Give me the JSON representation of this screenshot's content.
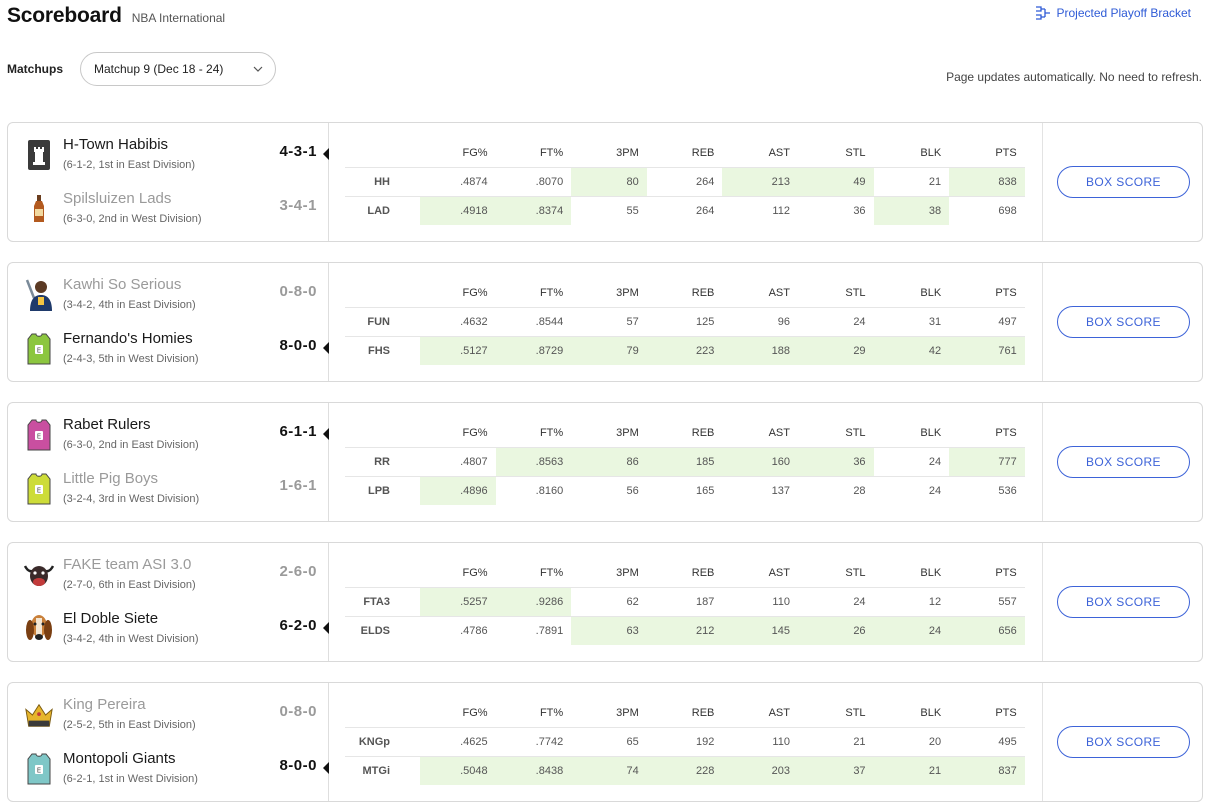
{
  "header": {
    "title": "Scoreboard",
    "league": "NBA International"
  },
  "bracket_link": "Projected Playoff Bracket",
  "matchups_label": "Matchups",
  "matchup_select": {
    "value": "Matchup 9 (Dec 18 - 24)"
  },
  "auto_note": "Page updates automatically. No need to refresh.",
  "columns": [
    "FG%",
    "FT%",
    "3PM",
    "REB",
    "AST",
    "STL",
    "BLK",
    "PTS"
  ],
  "box_score_label": "BOX SCORE",
  "matchups": [
    {
      "teams": [
        {
          "name": "H-Town Habibis",
          "sub": "(6-1-2, 1st in East Division)",
          "record": "4-3-1",
          "winner": true,
          "logo": "tower-icon"
        },
        {
          "name": "Spilsluizen Lads",
          "sub": "(6-3-0, 2nd in West Division)",
          "record": "3-4-1",
          "winner": false,
          "logo": "bottle-icon"
        }
      ],
      "rows": [
        {
          "abbr": "HH",
          "values": [
            ".4874",
            ".8070",
            "80",
            "264",
            "213",
            "49",
            "21",
            "838"
          ],
          "wins": [
            false,
            false,
            true,
            false,
            true,
            true,
            false,
            true
          ]
        },
        {
          "abbr": "LAD",
          "values": [
            ".4918",
            ".8374",
            "55",
            "264",
            "112",
            "36",
            "38",
            "698"
          ],
          "wins": [
            true,
            true,
            false,
            false,
            false,
            false,
            true,
            false
          ]
        }
      ]
    },
    {
      "teams": [
        {
          "name": "Kawhi So Serious",
          "sub": "(3-4-2, 4th in East Division)",
          "record": "0-8-0",
          "winner": false,
          "logo": "player-icon"
        },
        {
          "name": "Fernando's Homies",
          "sub": "(2-4-3, 5th in West Division)",
          "record": "8-0-0",
          "winner": true,
          "logo": "jersey-icon"
        }
      ],
      "rows": [
        {
          "abbr": "FUN",
          "values": [
            ".4632",
            ".8544",
            "57",
            "125",
            "96",
            "24",
            "31",
            "497"
          ],
          "wins": [
            false,
            false,
            false,
            false,
            false,
            false,
            false,
            false
          ]
        },
        {
          "abbr": "FHS",
          "values": [
            ".5127",
            ".8729",
            "79",
            "223",
            "188",
            "29",
            "42",
            "761"
          ],
          "wins": [
            true,
            true,
            true,
            true,
            true,
            true,
            true,
            true
          ]
        }
      ]
    },
    {
      "teams": [
        {
          "name": "Rabet Rulers",
          "sub": "(6-3-0, 2nd in East Division)",
          "record": "6-1-1",
          "winner": true,
          "logo": "jersey-icon"
        },
        {
          "name": "Little Pig Boys",
          "sub": "(3-2-4, 3rd in West Division)",
          "record": "1-6-1",
          "winner": false,
          "logo": "jersey-icon"
        }
      ],
      "rows": [
        {
          "abbr": "RR",
          "values": [
            ".4807",
            ".8563",
            "86",
            "185",
            "160",
            "36",
            "24",
            "777"
          ],
          "wins": [
            false,
            true,
            true,
            true,
            true,
            true,
            false,
            true
          ]
        },
        {
          "abbr": "LPB",
          "values": [
            ".4896",
            ".8160",
            "56",
            "165",
            "137",
            "28",
            "24",
            "536"
          ],
          "wins": [
            true,
            false,
            false,
            false,
            false,
            false,
            false,
            false
          ]
        }
      ]
    },
    {
      "teams": [
        {
          "name": "FAKE team ASI 3.0",
          "sub": "(2-7-0, 6th in East Division)",
          "record": "2-6-0",
          "winner": false,
          "logo": "bull-icon"
        },
        {
          "name": "El Doble Siete",
          "sub": "(3-4-2, 4th in West Division)",
          "record": "6-2-0",
          "winner": true,
          "logo": "dog-icon"
        }
      ],
      "rows": [
        {
          "abbr": "FTA3",
          "values": [
            ".5257",
            ".9286",
            "62",
            "187",
            "110",
            "24",
            "12",
            "557"
          ],
          "wins": [
            true,
            true,
            false,
            false,
            false,
            false,
            false,
            false
          ]
        },
        {
          "abbr": "ELDS",
          "values": [
            ".4786",
            ".7891",
            "63",
            "212",
            "145",
            "26",
            "24",
            "656"
          ],
          "wins": [
            false,
            false,
            true,
            true,
            true,
            true,
            true,
            true
          ]
        }
      ]
    },
    {
      "teams": [
        {
          "name": "King Pereira",
          "sub": "(2-5-2, 5th in East Division)",
          "record": "0-8-0",
          "winner": false,
          "logo": "crown-icon"
        },
        {
          "name": "Montopoli Giants",
          "sub": "(6-2-1, 1st in West Division)",
          "record": "8-0-0",
          "winner": true,
          "logo": "jersey-icon"
        }
      ],
      "rows": [
        {
          "abbr": "KNGp",
          "values": [
            ".4625",
            ".7742",
            "65",
            "192",
            "110",
            "21",
            "20",
            "495"
          ],
          "wins": [
            false,
            false,
            false,
            false,
            false,
            false,
            false,
            false
          ]
        },
        {
          "abbr": "MTGi",
          "values": [
            ".5048",
            ".8438",
            "74",
            "228",
            "203",
            "37",
            "21",
            "837"
          ],
          "wins": [
            true,
            true,
            true,
            true,
            true,
            true,
            true,
            true
          ]
        }
      ]
    }
  ],
  "colors": {
    "accent": "#3d63d8",
    "win_cell": "#eaf7e0",
    "jersey_colors": [
      "#8cc63f",
      "#c94fa0",
      "#cddc39",
      "#7fc7c7"
    ]
  }
}
